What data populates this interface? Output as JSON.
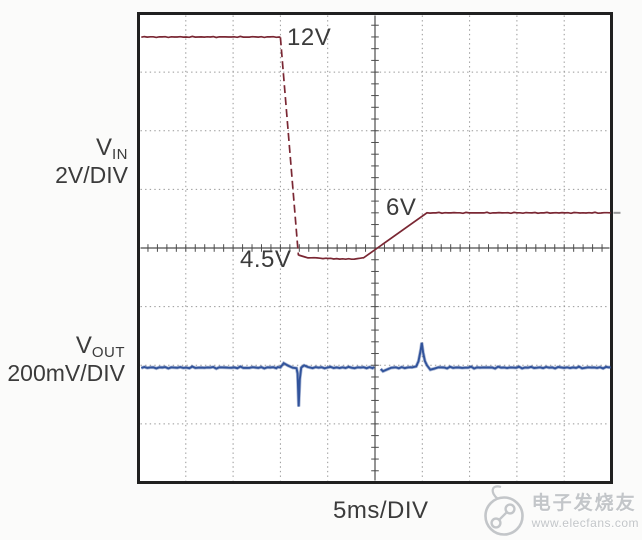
{
  "labels": {
    "vin_symbol": "V",
    "vin_sub": "IN",
    "vin_scale": "2V/DIV",
    "vout_symbol": "V",
    "vout_sub": "OUT",
    "vout_scale": "200mV/DIV",
    "x_axis": "5ms/DIV"
  },
  "annotations": {
    "vin_high": "12V",
    "vin_final": "6V",
    "vin_low": "4.5V"
  },
  "watermark": {
    "brand": "电子发烧友",
    "site": "www.elecfans.com"
  },
  "colors": {
    "vin": "#7a2733",
    "vout": "#31539b",
    "grid": "#979797",
    "axis": "#4d4d4d",
    "border": "#202020",
    "text": "#3b3b3b",
    "watermark": "#c3c6c9",
    "plot_background": "#ffffff"
  },
  "chart_data": {
    "type": "line",
    "title": "",
    "xlabel": "5ms/DIV",
    "x_unit": "ms",
    "x_range": [
      0,
      50
    ],
    "x_divisions": 10,
    "y_divisions": 8,
    "grid": "dotted 10x8 oscilloscope graticule with solid ticked center axes",
    "legend_position": "left margin channel labels",
    "series": [
      {
        "name": "VIN",
        "scale": "2V/DIV",
        "unit": "V",
        "color": "#7a2733",
        "levels": {
          "initial": 12,
          "dip": 4.5,
          "final": 6
        },
        "segments": [
          {
            "style": "solid",
            "points": [
              [
                0.3,
                12
              ],
              [
                15.0,
                12
              ]
            ]
          },
          {
            "style": "dashed",
            "points": [
              [
                15.0,
                12
              ],
              [
                16.9,
                4.55
              ]
            ]
          },
          {
            "style": "solid",
            "points": [
              [
                16.9,
                4.55
              ],
              [
                17.6,
                4.48
              ],
              [
                20.0,
                4.44
              ],
              [
                22.5,
                4.42
              ],
              [
                23.8,
                4.46
              ],
              [
                30.5,
                6.0
              ],
              [
                49.9,
                6.0
              ]
            ]
          }
        ]
      },
      {
        "name": "VOUT",
        "scale": "200mV/DIV",
        "unit": "mV deviation from nominal",
        "color": "#31539b",
        "levels": {
          "baseline": 0,
          "negative_spike": -133,
          "positive_spike": 85
        },
        "segments": [
          {
            "style": "solid",
            "points": [
              [
                0.3,
                0
              ],
              [
                14.7,
                0
              ],
              [
                15.0,
                3
              ],
              [
                15.35,
                13
              ],
              [
                15.8,
                6
              ],
              [
                16.3,
                1
              ],
              [
                16.7,
                0
              ],
              [
                16.82,
                -20
              ],
              [
                16.93,
                -133
              ],
              [
                17.05,
                -40
              ],
              [
                17.2,
                0
              ],
              [
                17.5,
                7
              ],
              [
                17.9,
                4
              ],
              [
                18.4,
                0
              ],
              [
                24.9,
                0
              ]
            ]
          },
          {
            "style": "solid",
            "points": [
              [
                25.6,
                -7
              ],
              [
                25.85,
                -11
              ],
              [
                26.2,
                -7
              ],
              [
                26.7,
                -2
              ],
              [
                27.2,
                0
              ],
              [
                28.9,
                0
              ],
              [
                29.35,
                5
              ],
              [
                29.6,
                22
              ],
              [
                29.82,
                58
              ],
              [
                29.95,
                85
              ],
              [
                30.08,
                52
              ],
              [
                30.28,
                22
              ],
              [
                30.5,
                6
              ],
              [
                30.85,
                -4
              ],
              [
                31.25,
                -6
              ],
              [
                31.7,
                -2
              ],
              [
                32.3,
                0
              ],
              [
                49.9,
                0
              ]
            ]
          }
        ]
      }
    ]
  }
}
